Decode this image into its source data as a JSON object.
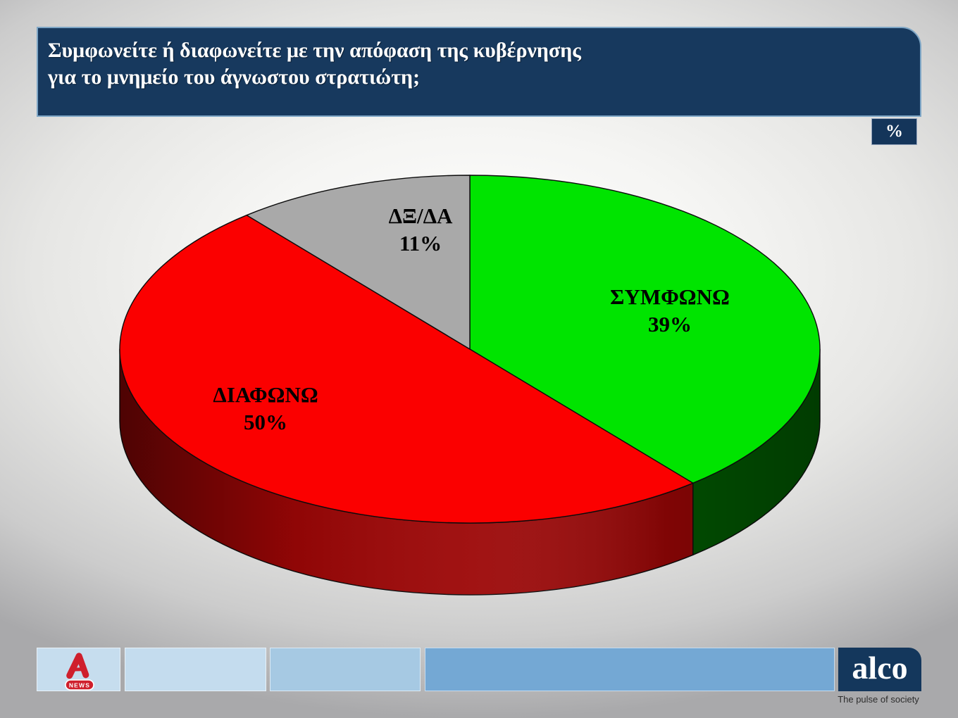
{
  "title": {
    "line1": "Συμφωνείτε ή διαφωνείτε με την απόφαση της κυβέρνησης",
    "line2": "για το μνημείο του άγνωστου στρατιώτη;"
  },
  "unit_badge": "%",
  "chart_data": {
    "type": "pie",
    "style": "3d",
    "title": "Συμφωνείτε ή διαφωνείτε με την απόφαση της κυβέρνησης για το μνημείο του άγνωστου στρατιώτη;",
    "unit": "%",
    "start_angle_deg": 0,
    "direction": "clockwise",
    "slices": [
      {
        "key": "agree",
        "label": "ΣΥΜΦΩΝΩ",
        "value": 39,
        "pct_label": "39%",
        "color": "#00e400",
        "side_color": "#015c01"
      },
      {
        "key": "disagree",
        "label": "ΔΙΑΦΩΝΩ",
        "value": 50,
        "pct_label": "50%",
        "color": "#fb0000",
        "side_color": "#9c0606"
      },
      {
        "key": "dk",
        "label": "ΔΞ/ΔΑ",
        "value": 11,
        "pct_label": "11%",
        "color": "#a9a9a9",
        "side_color": null
      }
    ]
  },
  "footer": {
    "news_label": "NEWS",
    "alco_label": "alco",
    "tagline": "The pulse of society"
  },
  "colors": {
    "banner_bg": "#17395e",
    "banner_border": "#7ea6c6",
    "badge_bg": "#14355a",
    "alpha_red": "#cf1f2c",
    "alco_bg": "#14375c",
    "footer_bars": [
      "#c6ddee",
      "#c4dcee",
      "#a6c9e3",
      "#74a8d4"
    ]
  }
}
